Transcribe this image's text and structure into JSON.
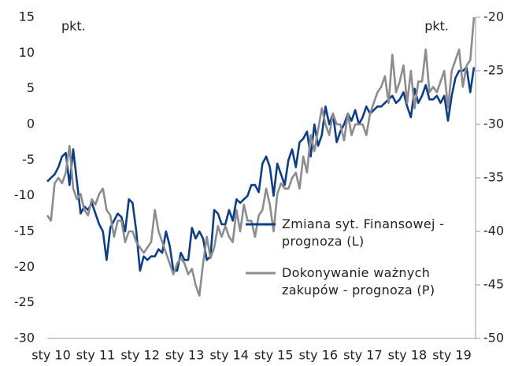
{
  "chart_data": {
    "type": "line",
    "categories": [
      "sty 10",
      null,
      null,
      null,
      null,
      null,
      null,
      null,
      null,
      null,
      null,
      null,
      "sty 11",
      null,
      null,
      null,
      null,
      null,
      null,
      null,
      null,
      null,
      null,
      null,
      "sty 12",
      null,
      null,
      null,
      null,
      null,
      null,
      null,
      null,
      null,
      null,
      null,
      "sty 13",
      null,
      null,
      null,
      null,
      null,
      null,
      null,
      null,
      null,
      null,
      null,
      "sty 14",
      null,
      null,
      null,
      null,
      null,
      null,
      null,
      null,
      null,
      null,
      null,
      "sty 15",
      null,
      null,
      null,
      null,
      null,
      null,
      null,
      null,
      null,
      null,
      null,
      "sty 16",
      null,
      null,
      null,
      null,
      null,
      null,
      null,
      null,
      null,
      null,
      null,
      "sty 17",
      null,
      null,
      null,
      null,
      null,
      null,
      null,
      null,
      null,
      null,
      null,
      "sty 18",
      null,
      null,
      null,
      null,
      null,
      null,
      null,
      null,
      null,
      null,
      null,
      "sty 19",
      null,
      null,
      null,
      null,
      null,
      null,
      null
    ],
    "series": [
      {
        "name": "Zmiana syt. Finansowej - prognoza (L)",
        "color": "#0b3d8f",
        "axis": "y",
        "values": [
          -8,
          -7.5,
          -7,
          -6,
          -4.5,
          -4,
          -8.5,
          -3.5,
          -8,
          -12.5,
          -11.5,
          -12,
          -11,
          -12.5,
          -14,
          -15,
          -19,
          -14.5,
          -13.5,
          -12.5,
          -13,
          -15,
          -10.5,
          -11,
          -15,
          -20.5,
          -18.5,
          -19,
          -18.5,
          -18.5,
          -17.5,
          -18,
          -15,
          -17,
          -20.5,
          -20.5,
          -18,
          -19,
          -19,
          -14.5,
          -16,
          -15,
          -16,
          -19,
          -18.5,
          -12,
          -12.5,
          -14,
          -14,
          -12,
          -13.5,
          -10.5,
          -11,
          -10.5,
          -10,
          -8.5,
          -8.5,
          -9.5,
          -5.5,
          -4.5,
          -6,
          -10,
          -5.5,
          -7,
          -8.5,
          -5,
          -3.5,
          -6,
          -2.5,
          -2,
          -1,
          -4.5,
          0,
          -3,
          -1.5,
          2.5,
          0,
          1.5,
          -2.5,
          -1,
          0,
          1.5,
          0.5,
          2,
          0,
          1,
          2.5,
          1.5,
          2,
          2.5,
          2.5,
          3,
          3.5,
          4,
          3,
          3.5,
          4.5,
          2.5,
          1,
          5,
          3,
          4,
          5.5,
          3.5,
          3.5,
          4,
          3,
          4,
          0.5,
          4,
          6.5,
          7.5,
          7.5,
          8,
          4.5,
          8
        ]
      },
      {
        "name": "Dokonywanie ważnych zakupów - prognoza (P)",
        "color": "#8c8c8c",
        "axis": "y2",
        "values": [
          -38.5,
          -39,
          -35.5,
          -35,
          -35.5,
          -34.5,
          -32,
          -36,
          -37,
          -36.5,
          -38,
          -38.5,
          -37,
          -37.5,
          -36.5,
          -36,
          -38,
          -38.5,
          -40.5,
          -39,
          -39,
          -41,
          -40,
          -40,
          -41,
          -41.5,
          -42,
          -41.5,
          -41,
          -38,
          -40,
          -41,
          -42,
          -43,
          -44,
          -43,
          -42.5,
          -43,
          -44,
          -43.5,
          -45,
          -46,
          -43,
          -40.5,
          -42.5,
          -41.5,
          -39.5,
          -40.5,
          -39.5,
          -40.5,
          -41,
          -38,
          -40,
          -37.5,
          -39,
          -39,
          -40.5,
          -38.5,
          -38,
          -36,
          -37.5,
          -40,
          -36.5,
          -35.5,
          -36,
          -36,
          -35,
          -34.5,
          -36,
          -33,
          -34.5,
          -31,
          -32.5,
          -30.5,
          -28.5,
          -30,
          -31,
          -29,
          -30,
          -30,
          -31.5,
          -29,
          -31,
          -30,
          -30,
          -30,
          -31,
          -29,
          -28,
          -27,
          -26.5,
          -25.5,
          -28,
          -23.5,
          -27,
          -26,
          -24.5,
          -28,
          -25,
          -28.5,
          -26,
          -26,
          -23,
          -27,
          -26.5,
          -27,
          -26,
          -25,
          -28.5,
          -25,
          -24,
          -23,
          -26.5,
          -24.5,
          -24,
          -20
        ]
      }
    ],
    "ylim": [
      -30,
      15
    ],
    "yticks": [
      -30,
      -25,
      -20,
      -15,
      -10,
      -5,
      0,
      5,
      10,
      15
    ],
    "y2lim": [
      -50,
      -20
    ],
    "y2ticks": [
      -50,
      -45,
      -40,
      -35,
      -30,
      -25,
      -20
    ],
    "ylabel": "pkt.",
    "y2label": "pkt.",
    "legend": "center-right"
  }
}
